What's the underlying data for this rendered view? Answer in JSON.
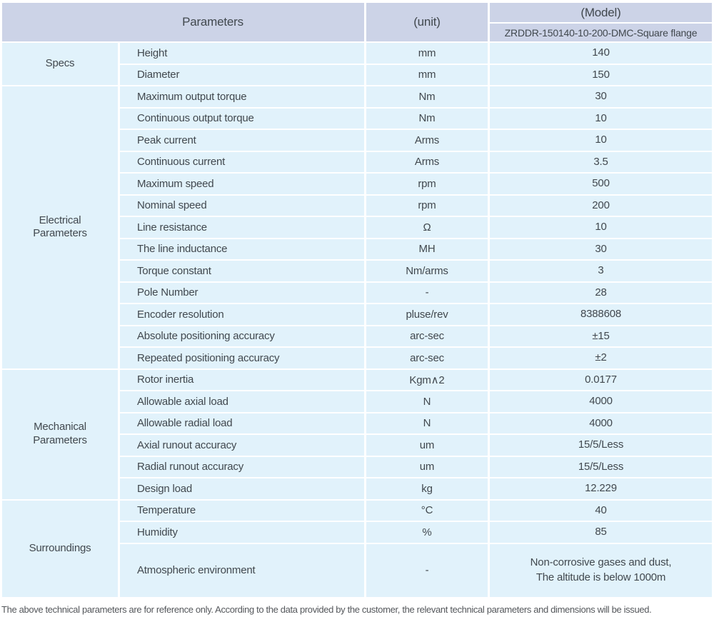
{
  "header": {
    "parameters_label": "Parameters",
    "unit_label": "(unit)",
    "model_label": "(Model)",
    "model_value": "ZRDDR-150140-10-200-DMC-Square flange"
  },
  "sections": [
    {
      "label": "Specs",
      "rows": [
        {
          "param": "Height",
          "unit": "mm",
          "value": "140"
        },
        {
          "param": "Diameter",
          "unit": "mm",
          "value": "150"
        }
      ]
    },
    {
      "label": "Electrical\nParameters",
      "rows": [
        {
          "param": "Maximum output torque",
          "unit": "Nm",
          "value": "30"
        },
        {
          "param": "Continuous output torque",
          "unit": "Nm",
          "value": "10"
        },
        {
          "param": "Peak current",
          "unit": "Arms",
          "value": "10"
        },
        {
          "param": "Continuous current",
          "unit": "Arms",
          "value": "3.5"
        },
        {
          "param": "Maximum speed",
          "unit": "rpm",
          "value": "500"
        },
        {
          "param": "Nominal speed",
          "unit": "rpm",
          "value": "200"
        },
        {
          "param": "Line resistance",
          "unit": "Ω",
          "value": "10"
        },
        {
          "param": "The line inductance",
          "unit": "MH",
          "value": "30"
        },
        {
          "param": "Torque constant",
          "unit": "Nm/arms",
          "value": "3"
        },
        {
          "param": "Pole Number",
          "unit": "-",
          "value": "28"
        },
        {
          "param": "Encoder resolution",
          "unit": "pluse/rev",
          "value": "8388608"
        },
        {
          "param": "Absolute positioning accuracy",
          "unit": "arc-sec",
          "value": "±15"
        },
        {
          "param": "Repeated positioning accuracy",
          "unit": "arc-sec",
          "value": "±2"
        }
      ]
    },
    {
      "label": "Mechanical\nParameters",
      "rows": [
        {
          "param": "Rotor inertia",
          "unit": "Kgm∧2",
          "value": "0.0177"
        },
        {
          "param": "Allowable axial load",
          "unit": "N",
          "value": "4000"
        },
        {
          "param": "Allowable radial load",
          "unit": "N",
          "value": "4000"
        },
        {
          "param": "Axial runout accuracy",
          "unit": "um",
          "value": "15/5/Less"
        },
        {
          "param": "Radial runout accuracy",
          "unit": "um",
          "value": "15/5/Less"
        },
        {
          "param": "Design load",
          "unit": "kg",
          "value": "12.229"
        }
      ]
    },
    {
      "label": "Surroundings",
      "rows": [
        {
          "param": "Temperature",
          "unit": "°C",
          "value": "40"
        },
        {
          "param": "Humidity",
          "unit": "%",
          "value": "85"
        },
        {
          "param": "Atmospheric environment",
          "unit": "-",
          "value": "Non-corrosive gases and dust,\nThe altitude is below 1000m"
        }
      ]
    }
  ],
  "footer": {
    "note": "The above technical parameters are for reference only. According to the data provided by the customer, the relevant technical parameters and dimensions will be issued."
  },
  "colors": {
    "header_bg": "#ccd3e7",
    "row_bg": "#e1f2fb",
    "text": "#41484e"
  }
}
